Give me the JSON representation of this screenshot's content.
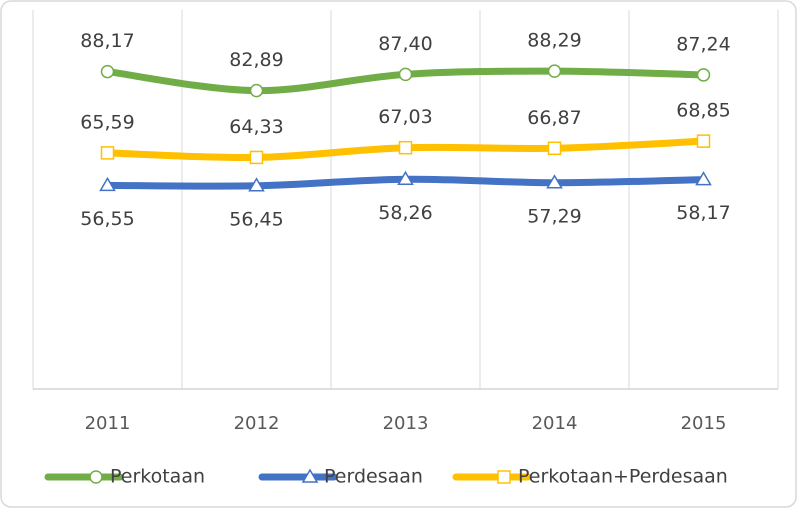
{
  "chart_data": {
    "type": "line",
    "categories": [
      "2011",
      "2012",
      "2013",
      "2014",
      "2015"
    ],
    "ylim": [
      0,
      100
    ],
    "series": [
      {
        "name": "Perkotaan",
        "color": "#70ad47",
        "marker": "circle",
        "label_position": "above",
        "values": [
          88.17,
          82.89,
          87.4,
          88.29,
          87.24
        ],
        "value_labels": [
          "88,17",
          "82,89",
          "87,40",
          "88,29",
          "87,24"
        ]
      },
      {
        "name": "Perdesaan",
        "color": "#4472c4",
        "marker": "triangle",
        "label_position": "below",
        "values": [
          56.55,
          56.45,
          58.26,
          57.29,
          58.17
        ],
        "value_labels": [
          "56,55",
          "56,45",
          "58,26",
          "57,29",
          "58,17"
        ]
      },
      {
        "name": "Perkotaan+Perdesaan",
        "color": "#ffc000",
        "marker": "square",
        "label_position": "above",
        "values": [
          65.59,
          64.33,
          67.03,
          66.87,
          68.85
        ],
        "value_labels": [
          "65,59",
          "64,33",
          "67,03",
          "66,87",
          "68,85"
        ]
      }
    ]
  }
}
